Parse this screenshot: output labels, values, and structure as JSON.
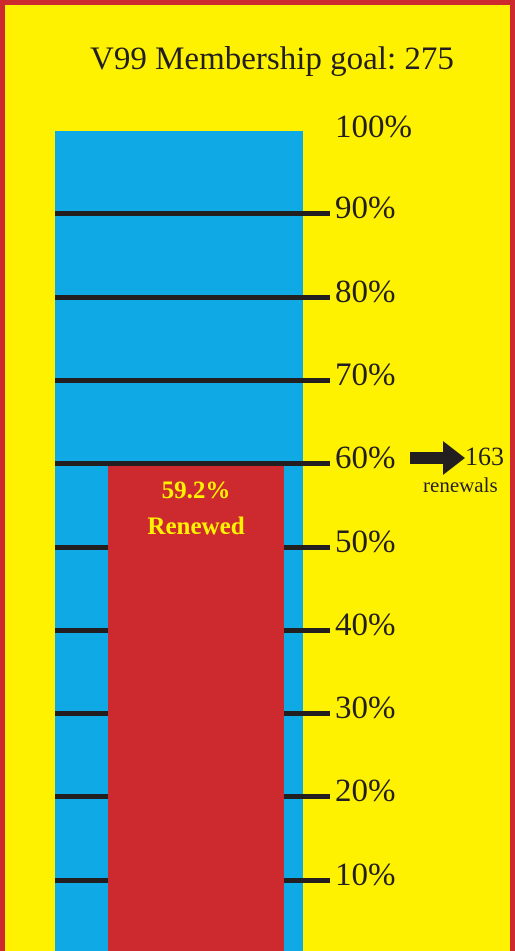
{
  "colors": {
    "background": "#fff200",
    "border": "#cc2a2e",
    "tube": "#0fa9e6",
    "fill": "#cc2a2e",
    "tick": "#231f20",
    "fill_label": "#fff200"
  },
  "chart_data": {
    "type": "bar",
    "subtype": "thermometer-goal",
    "title": "V99 Membership goal: 275",
    "goal": 275,
    "value": 163,
    "percent": 59.2,
    "ylim": [
      0,
      100
    ],
    "ticks": [
      {
        "value": 100,
        "label": "100%"
      },
      {
        "value": 90,
        "label": "90%"
      },
      {
        "value": 80,
        "label": "80%"
      },
      {
        "value": 70,
        "label": "70%"
      },
      {
        "value": 60,
        "label": "60%"
      },
      {
        "value": 50,
        "label": "50%"
      },
      {
        "value": 40,
        "label": "40%"
      },
      {
        "value": 30,
        "label": "30%"
      },
      {
        "value": 20,
        "label": "20%"
      },
      {
        "value": 10,
        "label": "10%"
      }
    ],
    "fill_label": {
      "percent_text": "59.2%",
      "status_text": "Renewed"
    },
    "marker": {
      "arrow": "right-arrow-icon",
      "count_text": "163",
      "unit_text": "renewals"
    }
  }
}
